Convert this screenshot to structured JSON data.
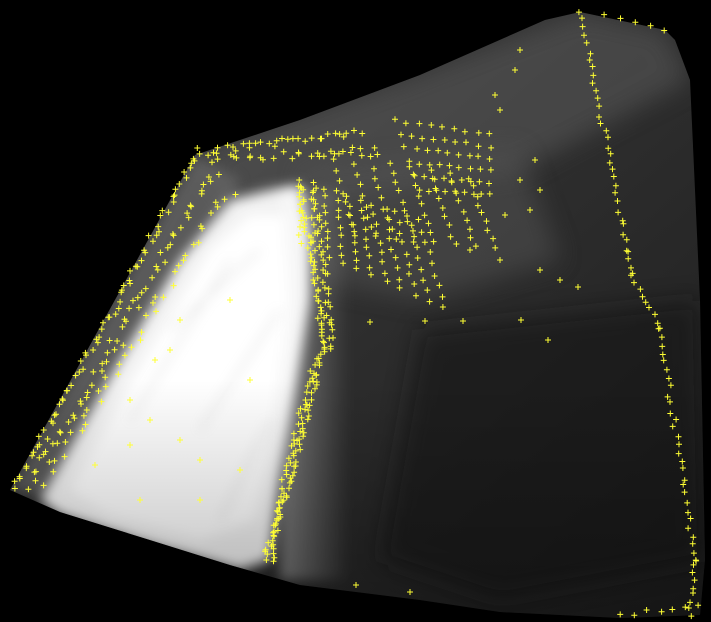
{
  "image": {
    "description_name": "interpolated-scalar-field-with-sample-points",
    "background_color": "#000000",
    "marker_color": "#ffff33",
    "marker_glyph": "plus",
    "colormap": "grayscale"
  }
}
